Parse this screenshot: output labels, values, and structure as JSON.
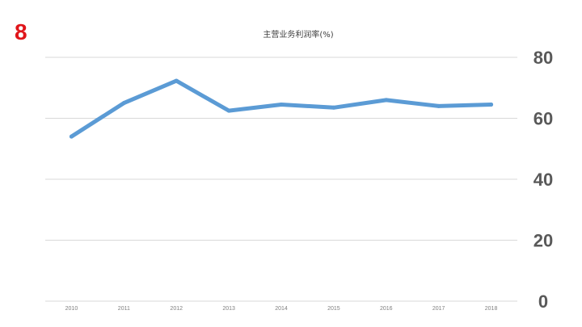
{
  "slide": {
    "page_number": "8",
    "accent_color": "#e0151a"
  },
  "chart_data": {
    "type": "line",
    "title": "主营业务利润率(%)",
    "xlabel": "",
    "ylabel": "",
    "categories": [
      "2010",
      "2011",
      "2012",
      "2013",
      "2014",
      "2015",
      "2016",
      "2017",
      "2018"
    ],
    "series": [
      {
        "values": [
          54.0,
          65.0,
          72.3,
          62.5,
          64.5,
          63.5,
          66.0,
          64.0,
          64.5
        ],
        "color": "#5b9bd5"
      }
    ],
    "ylim": [
      0,
      80
    ],
    "yticks": [
      "0",
      "20",
      "40",
      "60",
      "80"
    ],
    "y_axis_position": "right",
    "grid": true,
    "legend": "none"
  }
}
